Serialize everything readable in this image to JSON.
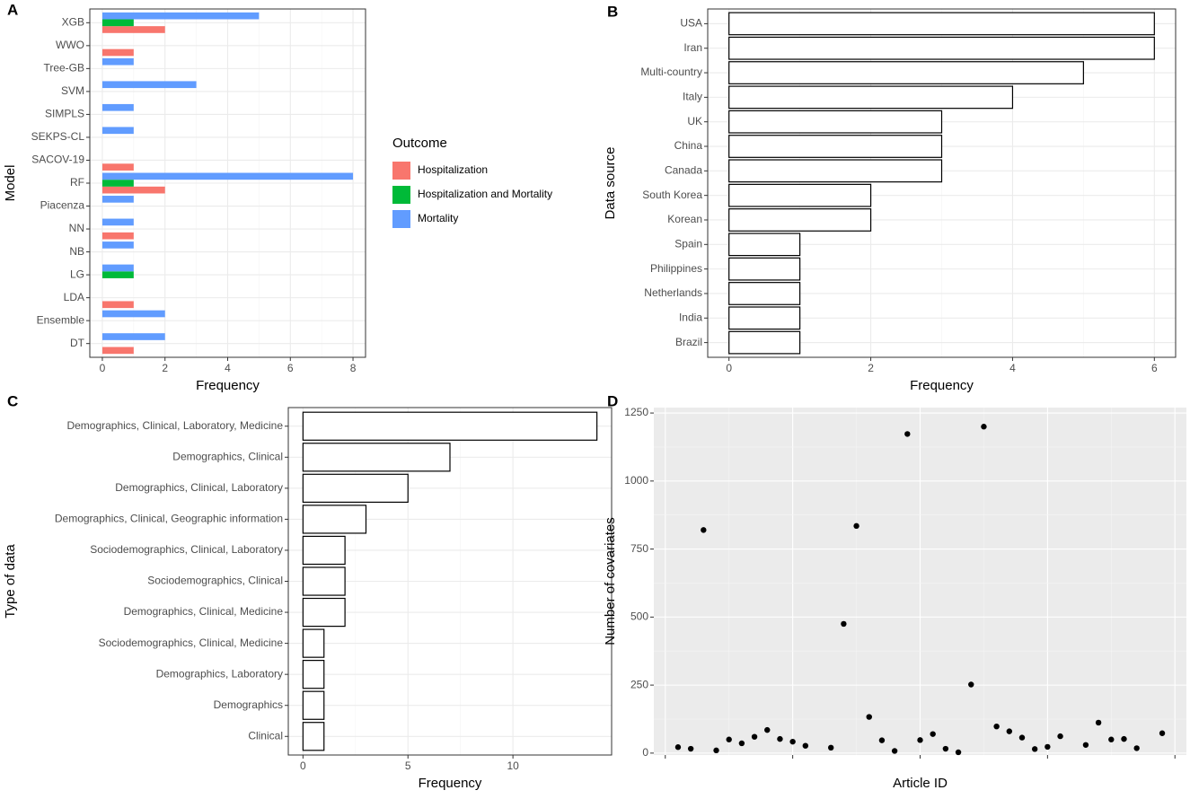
{
  "chart_data": [
    {
      "panel": "A",
      "type": "bar",
      "horizontal": true,
      "ylabel": "Model",
      "xlabel": "Frequency",
      "categories": [
        "XGB",
        "WWO",
        "Tree-GB",
        "SVM",
        "SIMPLS",
        "SEKPS-CL",
        "SACOV-19",
        "RF",
        "Piacenza",
        "NN",
        "NB",
        "LG",
        "LDA",
        "Ensemble",
        "DT"
      ],
      "series": [
        {
          "name": "Hospitalization",
          "color": "#F8766D",
          "values": [
            2,
            1,
            null,
            null,
            null,
            null,
            1,
            2,
            null,
            1,
            null,
            null,
            1,
            null,
            1
          ]
        },
        {
          "name": "Hospitalization and Mortality",
          "color": "#00BA38",
          "values": [
            1,
            null,
            null,
            null,
            null,
            null,
            null,
            1,
            null,
            null,
            null,
            1,
            null,
            null,
            null
          ]
        },
        {
          "name": "Mortality",
          "color": "#619CFF",
          "values": [
            5,
            null,
            1,
            3,
            1,
            1,
            null,
            8,
            1,
            1,
            1,
            1,
            null,
            2,
            2
          ]
        }
      ],
      "legend_title": "Outcome",
      "legend": "right",
      "xlim": [
        -0.4,
        8.4
      ],
      "xticks": [
        0,
        2,
        4,
        6,
        8
      ],
      "grid": true,
      "background": "#FFFFFF"
    },
    {
      "panel": "B",
      "type": "bar",
      "horizontal": true,
      "ylabel": "Data source",
      "xlabel": "Frequency",
      "categories": [
        "USA",
        "Iran",
        "Multi-country",
        "Italy",
        "UK",
        "China",
        "Canada",
        "South Korea",
        "Korean",
        "Spain",
        "Philippines",
        "Netherlands",
        "India",
        "Brazil"
      ],
      "values": [
        6,
        6,
        5,
        4,
        3,
        3,
        3,
        2,
        2,
        1,
        1,
        1,
        1,
        1
      ],
      "color": "#FFFFFF",
      "edgecolor": "#000000",
      "xlim": [
        -0.3,
        6.3
      ],
      "xticks": [
        0,
        2,
        4,
        6
      ],
      "grid": true,
      "background": "#FFFFFF"
    },
    {
      "panel": "C",
      "type": "bar",
      "horizontal": true,
      "ylabel": "Type of data",
      "xlabel": "Frequency",
      "categories": [
        "Demographics, Clinical, Laboratory, Medicine",
        "Demographics, Clinical",
        "Demographics, Clinical,  Laboratory",
        "Demographics, Clinical, Geographic information",
        "Sociodemographics, Clinical, Laboratory",
        "Sociodemographics, Clinical",
        "Demographics, Clinical, Medicine",
        "Sociodemographics, Clinical, Medicine",
        "Demographics, Laboratory",
        "Demographics",
        "Clinical"
      ],
      "values": [
        14,
        7,
        5,
        3,
        2,
        2,
        2,
        1,
        1,
        1,
        1
      ],
      "color": "#FFFFFF",
      "edgecolor": "#000000",
      "xlim": [
        -0.7,
        14.7
      ],
      "xticks": [
        0,
        5,
        10
      ],
      "grid": true,
      "background": "#FFFFFF"
    },
    {
      "panel": "D",
      "type": "scatter",
      "ylabel": "Number of covariates",
      "xlabel": "Article ID",
      "x": [
        1,
        2,
        3,
        4,
        5,
        6,
        7,
        8,
        9,
        10,
        11,
        13,
        14,
        15,
        16,
        17,
        18,
        19,
        20,
        21,
        22,
        23,
        24,
        25,
        26,
        27,
        28,
        29,
        30,
        31,
        33,
        34,
        35,
        36,
        37,
        39
      ],
      "values": [
        22,
        16,
        820,
        10,
        50,
        36,
        60,
        85,
        52,
        42,
        27,
        20,
        475,
        835,
        133,
        47,
        8,
        1173,
        48,
        70,
        16,
        3,
        252,
        1200,
        98,
        80,
        57,
        15,
        23,
        62,
        30,
        112,
        50,
        52,
        18,
        73
      ],
      "color": "#000000",
      "xlim": [
        -0.9,
        40.9
      ],
      "xticks": [
        0,
        10,
        20,
        30,
        40
      ],
      "xtick_labels": false,
      "ylim": [
        -7,
        1270
      ],
      "yticks": [
        0,
        250,
        500,
        750,
        1000,
        1250
      ],
      "grid": true,
      "background": "#EBEBEB"
    }
  ]
}
